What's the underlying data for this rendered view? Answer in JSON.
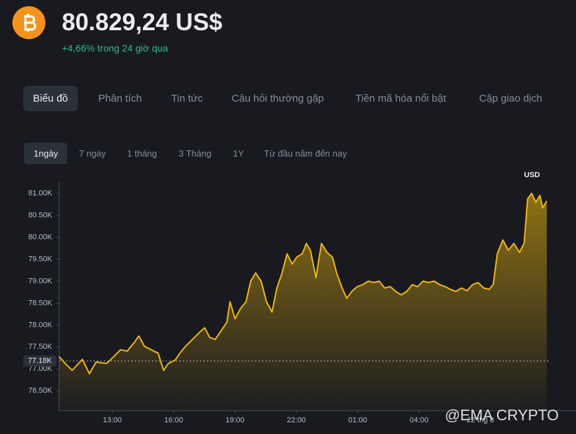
{
  "header": {
    "price": "80.829,24 US$",
    "change": "+4,66% trong 24 giờ qua"
  },
  "tabs": {
    "items": [
      "Biểu đồ",
      "Phân tích",
      "Tin tức",
      "Câu hỏi thường gặp",
      "Tiền mã hóa nổi bật",
      "Cặp giao dịch"
    ],
    "selected": 0
  },
  "ranges": {
    "items": [
      "1ngày",
      "7 ngày",
      "1 tháng",
      "3 Tháng",
      "1Y",
      "Từ đầu năm đến nay"
    ],
    "selected": 0
  },
  "watermark": "@EMA CRYPTO",
  "chart_data": {
    "type": "line",
    "currency_label": "USD",
    "color": "#f0b90b",
    "x": [
      10.4,
      10.7,
      11.04,
      11.54,
      11.88,
      12.21,
      12.72,
      13.07,
      13.4,
      13.73,
      14.06,
      14.3,
      14.57,
      14.9,
      15.24,
      15.51,
      15.74,
      16.08,
      16.31,
      16.58,
      16.92,
      17.25,
      17.52,
      17.76,
      18.03,
      18.33,
      18.6,
      18.76,
      19.0,
      19.27,
      19.54,
      19.77,
      20.01,
      20.28,
      20.54,
      20.81,
      21.05,
      21.28,
      21.55,
      21.79,
      22.02,
      22.29,
      22.49,
      22.69,
      22.96,
      23.23,
      23.5,
      23.77,
      23.97,
      24.24,
      24.47,
      24.71,
      24.98,
      25.25,
      25.52,
      25.78,
      26.05,
      26.32,
      26.59,
      26.86,
      27.13,
      27.4,
      27.67,
      27.93,
      28.2,
      28.47,
      28.74,
      29.01,
      29.28,
      29.54,
      29.81,
      30.08,
      30.35,
      30.62,
      30.89,
      31.16,
      31.43,
      31.63,
      31.83,
      32.1,
      32.37,
      32.64,
      32.91,
      33.14,
      33.31,
      33.51,
      33.71,
      33.91,
      34.05,
      34.25
    ],
    "values": [
      77281,
      77125,
      76969,
      77219,
      76891,
      77156,
      77125,
      77281,
      77438,
      77406,
      77594,
      77750,
      77516,
      77438,
      77359,
      76969,
      77125,
      77203,
      77359,
      77516,
      77672,
      77828,
      77938,
      77719,
      77672,
      77875,
      78063,
      78531,
      78141,
      78375,
      78531,
      79000,
      79188,
      79000,
      78531,
      78297,
      78844,
      79156,
      79625,
      79391,
      79547,
      79625,
      79859,
      79703,
      79078,
      79859,
      79656,
      79547,
      79188,
      78844,
      78609,
      78766,
      78875,
      78922,
      79000,
      78969,
      79000,
      78844,
      78875,
      78766,
      78688,
      78766,
      78922,
      78875,
      79000,
      78969,
      79000,
      78922,
      78875,
      78813,
      78766,
      78844,
      78781,
      78922,
      78969,
      78844,
      78813,
      78922,
      79625,
      79938,
      79703,
      79859,
      79656,
      79859,
      80875,
      81000,
      80797,
      80953,
      80672,
      80829
    ],
    "xlim": [
      10.4,
      34.4
    ],
    "xticks": [
      {
        "value": 13,
        "label": "13:00"
      },
      {
        "value": 16,
        "label": "16:00"
      },
      {
        "value": 19,
        "label": "19:00"
      },
      {
        "value": 22,
        "label": "22:00"
      },
      {
        "value": 25,
        "label": "01:00"
      },
      {
        "value": 28,
        "label": "04:00"
      },
      {
        "value": 31,
        "label": "22 thg 8"
      }
    ],
    "ylim": [
      76050,
      81260
    ],
    "yticks": [
      {
        "value": 76500,
        "label": "76.50K"
      },
      {
        "value": 77000,
        "label": "77.00K"
      },
      {
        "value": 77500,
        "label": "77.50K"
      },
      {
        "value": 78000,
        "label": "78.00K"
      },
      {
        "value": 78500,
        "label": "78.50K"
      },
      {
        "value": 79000,
        "label": "79.00K"
      },
      {
        "value": 79500,
        "label": "79.50K"
      },
      {
        "value": 80000,
        "label": "80.00K"
      },
      {
        "value": 80500,
        "label": "80.50K"
      },
      {
        "value": 81000,
        "label": "81.00K"
      }
    ],
    "reference": {
      "value": 77180,
      "label": "77.18K"
    }
  }
}
